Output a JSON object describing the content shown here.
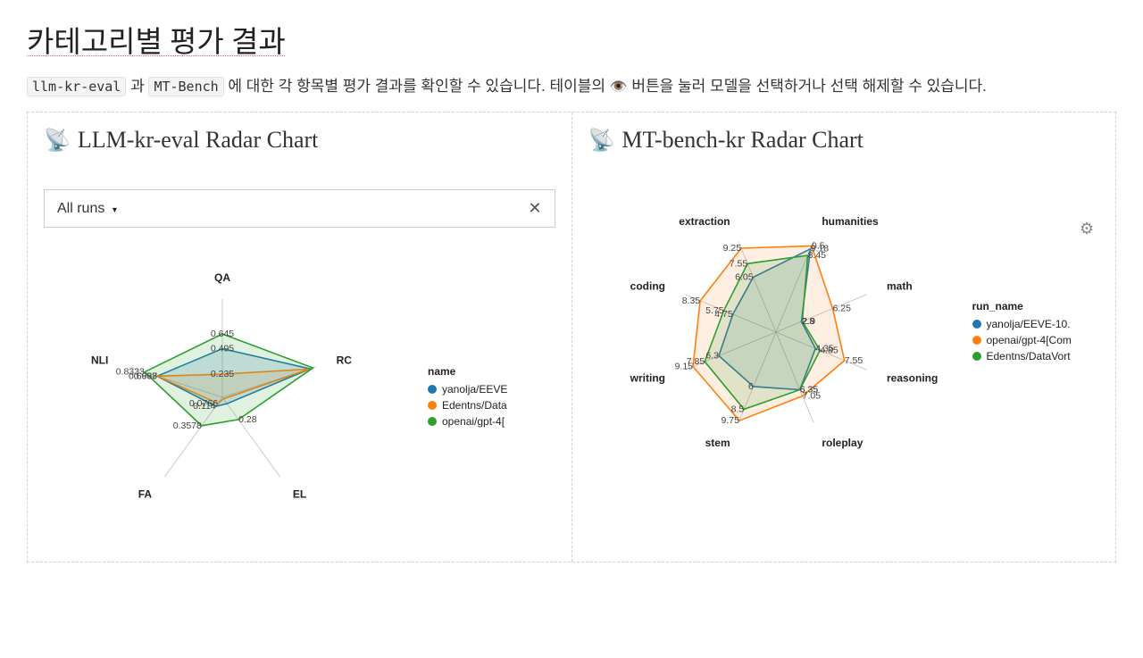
{
  "header": {
    "title": "카테고리별 평가 결과",
    "subtitle_pre": " 과 ",
    "subtitle_mid": " 에 대한 각 항목별 평가 결과를 확인할 수 있습니다. 테이블의 ",
    "subtitle_post": " 버튼을 눌러 모델을 선택하거나 선택 해제할 수 있습니다.",
    "code1": "llm-kr-eval",
    "code2": "MT-Bench"
  },
  "left_panel": {
    "title": "LLM-kr-eval Radar Chart",
    "selector_label": "All runs",
    "chart": {
      "type": "radar",
      "axes": [
        "QA",
        "RC",
        "EL",
        "FA",
        "NLI"
      ],
      "rmax": 1.0,
      "ring_values": [
        0.235,
        0.495,
        0.645
      ],
      "axis_value_labels": {
        "QA": [
          "0.235",
          "0.495",
          "0.645"
        ],
        "RC": [],
        "EL": [
          "0.28"
        ],
        "FA": [
          "0.3578",
          "0.0766",
          "0.114"
        ],
        "NLI": [
          "0.8333",
          "0.698",
          "0.6967"
        ]
      },
      "background_color": "#ffffff",
      "grid_color": "#bfbfbf",
      "series": [
        {
          "name": "yanolja/EEVE",
          "color": "#1f77b4",
          "fill_opacity": 0.18,
          "values": {
            "QA": 0.495,
            "RC": 0.94,
            "EL": 0.08,
            "FA": 0.114,
            "NLI": 0.698
          }
        },
        {
          "name": "Edentns/Data",
          "color": "#ff7f0e",
          "fill_opacity": 0.12,
          "values": {
            "QA": 0.235,
            "RC": 0.93,
            "EL": 0.02,
            "FA": 0.0766,
            "NLI": 0.6967
          }
        },
        {
          "name": "openai/gpt-4[",
          "color": "#2ca02c",
          "fill_opacity": 0.15,
          "values": {
            "QA": 0.645,
            "RC": 0.97,
            "EL": 0.28,
            "FA": 0.3578,
            "NLI": 0.8333
          }
        }
      ],
      "legend_title": "name",
      "legend_items": [
        "yanolja/EEVE",
        "Edentns/Data",
        "openai/gpt-4["
      ],
      "legend_colors": [
        "#1f77b4",
        "#ff7f0e",
        "#2ca02c"
      ]
    }
  },
  "right_panel": {
    "title": "MT-bench-kr Radar Chart",
    "chart": {
      "type": "radar",
      "axes": [
        "humanities",
        "math",
        "reasoning",
        "roleplay",
        "stem",
        "writing",
        "coding",
        "extraction"
      ],
      "rmax": 10,
      "background_color": "#ffffff",
      "grid_color": "#bfbfbf",
      "axis_value_labels": {
        "humanities": [
          "9.5",
          "8.45",
          "9.18"
        ],
        "math": [
          "6.25",
          "2.9",
          "2.8"
        ],
        "reasoning": [
          "7.55",
          "4.85",
          "4.35"
        ],
        "roleplay": [
          "7.05",
          "6.35",
          "6.35"
        ],
        "stem": [
          "9.75",
          "8.5",
          "6"
        ],
        "writing": [
          "9.15",
          "7.85",
          "6.3"
        ],
        "coding": [
          "8.35",
          "5.75",
          "4.75"
        ],
        "extraction": [
          "9.25",
          "7.55",
          "6.05"
        ]
      },
      "series": [
        {
          "name": "yanolja/EEVE-10.",
          "color": "#1f77b4",
          "fill_opacity": 0.15,
          "values": {
            "humanities": 9.18,
            "math": 2.8,
            "reasoning": 4.35,
            "roleplay": 6.35,
            "stem": 6.0,
            "writing": 6.3,
            "coding": 4.75,
            "extraction": 6.05
          }
        },
        {
          "name": "openai/gpt-4[Com",
          "color": "#ff7f0e",
          "fill_opacity": 0.12,
          "values": {
            "humanities": 9.5,
            "math": 6.25,
            "reasoning": 7.55,
            "roleplay": 7.05,
            "stem": 9.75,
            "writing": 9.15,
            "coding": 8.35,
            "extraction": 9.25
          }
        },
        {
          "name": "Edentns/DataVort",
          "color": "#2ca02c",
          "fill_opacity": 0.15,
          "values": {
            "humanities": 8.45,
            "math": 2.9,
            "reasoning": 4.85,
            "roleplay": 6.35,
            "stem": 8.5,
            "writing": 7.85,
            "coding": 5.75,
            "extraction": 7.55
          }
        }
      ],
      "legend_title": "run_name",
      "legend_items": [
        "yanolja/EEVE-10.",
        "openai/gpt-4[Com",
        "Edentns/DataVort"
      ],
      "legend_colors": [
        "#1f77b4",
        "#ff7f0e",
        "#2ca02c"
      ]
    }
  }
}
